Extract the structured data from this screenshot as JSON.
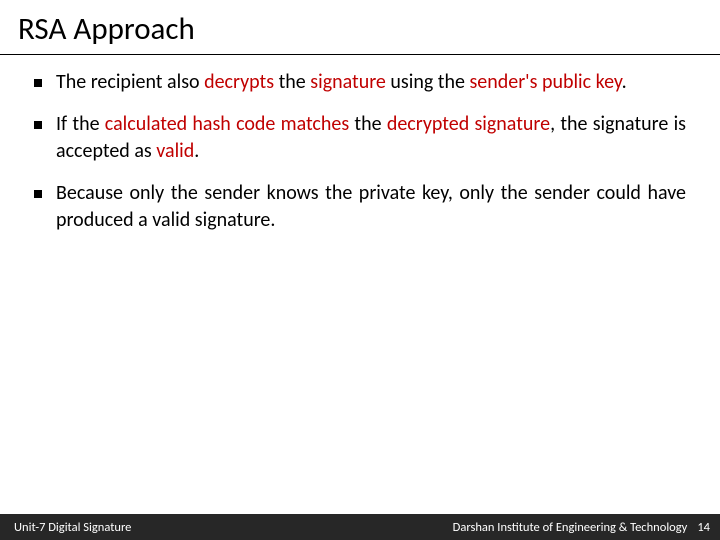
{
  "title": "RSA Approach",
  "bullets": [
    {
      "segments": [
        {
          "t": "The recipient also ",
          "hl": false
        },
        {
          "t": "decrypts",
          "hl": true
        },
        {
          "t": " the ",
          "hl": false
        },
        {
          "t": "signature",
          "hl": true
        },
        {
          "t": " using the ",
          "hl": false
        },
        {
          "t": "sender's public key",
          "hl": true
        },
        {
          "t": ".",
          "hl": false
        }
      ]
    },
    {
      "segments": [
        {
          "t": "If the ",
          "hl": false
        },
        {
          "t": "calculated hash code matches",
          "hl": true
        },
        {
          "t": " the ",
          "hl": false
        },
        {
          "t": "decrypted signature",
          "hl": true
        },
        {
          "t": ", the signature is accepted as ",
          "hl": false
        },
        {
          "t": "valid",
          "hl": true
        },
        {
          "t": ".",
          "hl": false
        }
      ]
    },
    {
      "segments": [
        {
          "t": "Because only the sender knows the private key, only the sender could have produced a valid signature.",
          "hl": false
        }
      ]
    }
  ],
  "footer": {
    "left": "Unit-7 Digital Signature",
    "right": "Darshan Institute of Engineering & Technology",
    "page": "14"
  },
  "colors": {
    "highlight": "#c00000",
    "text": "#000000",
    "footer_bg": "#272727",
    "footer_text": "#ffffff",
    "background": "#ffffff"
  },
  "typography": {
    "title_fontsize": 31,
    "body_fontsize": 20,
    "footer_fontsize": 12.5
  }
}
